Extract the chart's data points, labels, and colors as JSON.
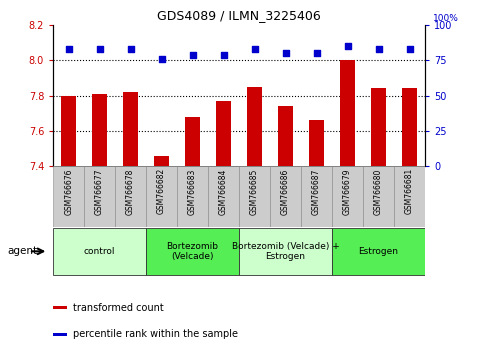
{
  "title": "GDS4089 / ILMN_3225406",
  "samples": [
    "GSM766676",
    "GSM766677",
    "GSM766678",
    "GSM766682",
    "GSM766683",
    "GSM766684",
    "GSM766685",
    "GSM766686",
    "GSM766687",
    "GSM766679",
    "GSM766680",
    "GSM766681"
  ],
  "bar_values": [
    7.8,
    7.81,
    7.82,
    7.46,
    7.68,
    7.77,
    7.85,
    7.74,
    7.66,
    8.0,
    7.84,
    7.84
  ],
  "percentile_values": [
    83,
    83,
    83,
    76,
    79,
    79,
    83,
    80,
    80,
    85,
    83,
    83
  ],
  "ymin": 7.4,
  "ymax": 8.2,
  "yticks_left": [
    7.4,
    7.6,
    7.8,
    8.0,
    8.2
  ],
  "yticks_right": [
    0,
    25,
    50,
    75,
    100
  ],
  "bar_color": "#CC0000",
  "dot_color": "#0000CC",
  "left_tick_color": "#CC0000",
  "right_tick_color": "#0000CC",
  "groups": [
    {
      "label": "control",
      "start": 0,
      "end": 3,
      "color": "#CCFFCC"
    },
    {
      "label": "Bortezomib\n(Velcade)",
      "start": 3,
      "end": 6,
      "color": "#55EE55"
    },
    {
      "label": "Bortezomib (Velcade) +\nEstrogen",
      "start": 6,
      "end": 9,
      "color": "#CCFFCC"
    },
    {
      "label": "Estrogen",
      "start": 9,
      "end": 12,
      "color": "#55EE55"
    }
  ],
  "legend_items": [
    {
      "color": "#CC0000",
      "label": "transformed count"
    },
    {
      "color": "#0000CC",
      "label": "percentile rank within the sample"
    }
  ],
  "agent_label": "agent",
  "xtick_bg_color": "#CCCCCC",
  "xtick_border_color": "#888888"
}
